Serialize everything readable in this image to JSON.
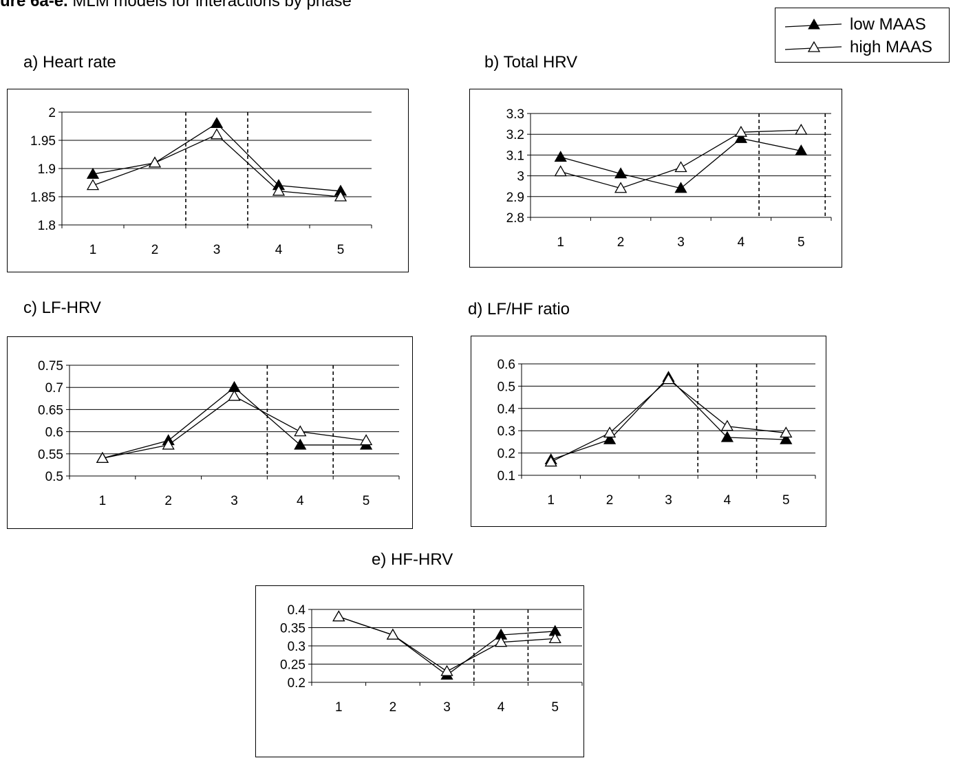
{
  "figure": {
    "label": "ure 6a-e.",
    "caption": " MLM models for interactions by phase"
  },
  "legend": {
    "items": [
      {
        "label": "low MAAS",
        "marker": "filled-triangle",
        "color": "#000000"
      },
      {
        "label": "high MAAS",
        "marker": "open-triangle",
        "color": "#000000"
      }
    ]
  },
  "chart_data": [
    {
      "type": "line",
      "title": "a) Heart rate",
      "x": [
        1,
        2,
        3,
        4,
        5
      ],
      "ylim": [
        1.8,
        2.0
      ],
      "yticks": [
        "1.8",
        "1.85",
        "1.9",
        "1.95",
        "2"
      ],
      "phase_dividers": [
        2.5,
        3.5
      ],
      "series": [
        {
          "name": "low MAAS",
          "values": [
            1.89,
            1.91,
            1.98,
            1.87,
            1.86
          ]
        },
        {
          "name": "high MAAS",
          "values": [
            1.87,
            1.91,
            1.96,
            1.86,
            1.85
          ]
        }
      ]
    },
    {
      "type": "line",
      "title": "b) Total HRV",
      "x": [
        1,
        2,
        3,
        4,
        5
      ],
      "ylim": [
        2.8,
        3.3
      ],
      "yticks": [
        "2.8",
        "2.9",
        "3",
        "3.1",
        "3.2",
        "3.3"
      ],
      "phase_dividers": [
        4.3,
        5.4
      ],
      "series": [
        {
          "name": "low MAAS",
          "values": [
            3.09,
            3.01,
            2.94,
            3.18,
            3.12
          ]
        },
        {
          "name": "high MAAS",
          "values": [
            3.02,
            2.94,
            3.04,
            3.21,
            3.22
          ]
        }
      ]
    },
    {
      "type": "line",
      "title": "c) LF-HRV",
      "x": [
        1,
        2,
        3,
        4,
        5
      ],
      "ylim": [
        0.5,
        0.75
      ],
      "yticks": [
        "0.5",
        "0.55",
        "0.6",
        "0.65",
        "0.7",
        "0.75"
      ],
      "phase_dividers": [
        3.5,
        4.5
      ],
      "series": [
        {
          "name": "low MAAS",
          "values": [
            0.54,
            0.58,
            0.7,
            0.57,
            0.57
          ]
        },
        {
          "name": "high MAAS",
          "values": [
            0.54,
            0.57,
            0.68,
            0.6,
            0.58
          ]
        }
      ]
    },
    {
      "type": "line",
      "title": "d) LF/HF ratio",
      "x": [
        1,
        2,
        3,
        4,
        5
      ],
      "ylim": [
        0.1,
        0.6
      ],
      "yticks": [
        "0.1",
        "0.2",
        "0.3",
        "0.4",
        "0.5",
        "0.6"
      ],
      "phase_dividers": [
        3.5,
        4.5
      ],
      "series": [
        {
          "name": "low MAAS",
          "values": [
            0.17,
            0.26,
            0.54,
            0.27,
            0.26
          ]
        },
        {
          "name": "high MAAS",
          "values": [
            0.16,
            0.29,
            0.53,
            0.32,
            0.29
          ]
        }
      ]
    },
    {
      "type": "line",
      "title": "e) HF-HRV",
      "x": [
        1,
        2,
        3,
        4,
        5
      ],
      "ylim": [
        0.2,
        0.4
      ],
      "yticks": [
        "0.2",
        "0.25",
        "0.3",
        "0.35",
        "0.4"
      ],
      "phase_dividers": [
        3.5,
        4.5
      ],
      "series": [
        {
          "name": "low MAAS",
          "values": [
            0.38,
            0.33,
            0.22,
            0.33,
            0.34
          ]
        },
        {
          "name": "high MAAS",
          "values": [
            0.38,
            0.33,
            0.23,
            0.31,
            0.32
          ]
        }
      ]
    }
  ]
}
